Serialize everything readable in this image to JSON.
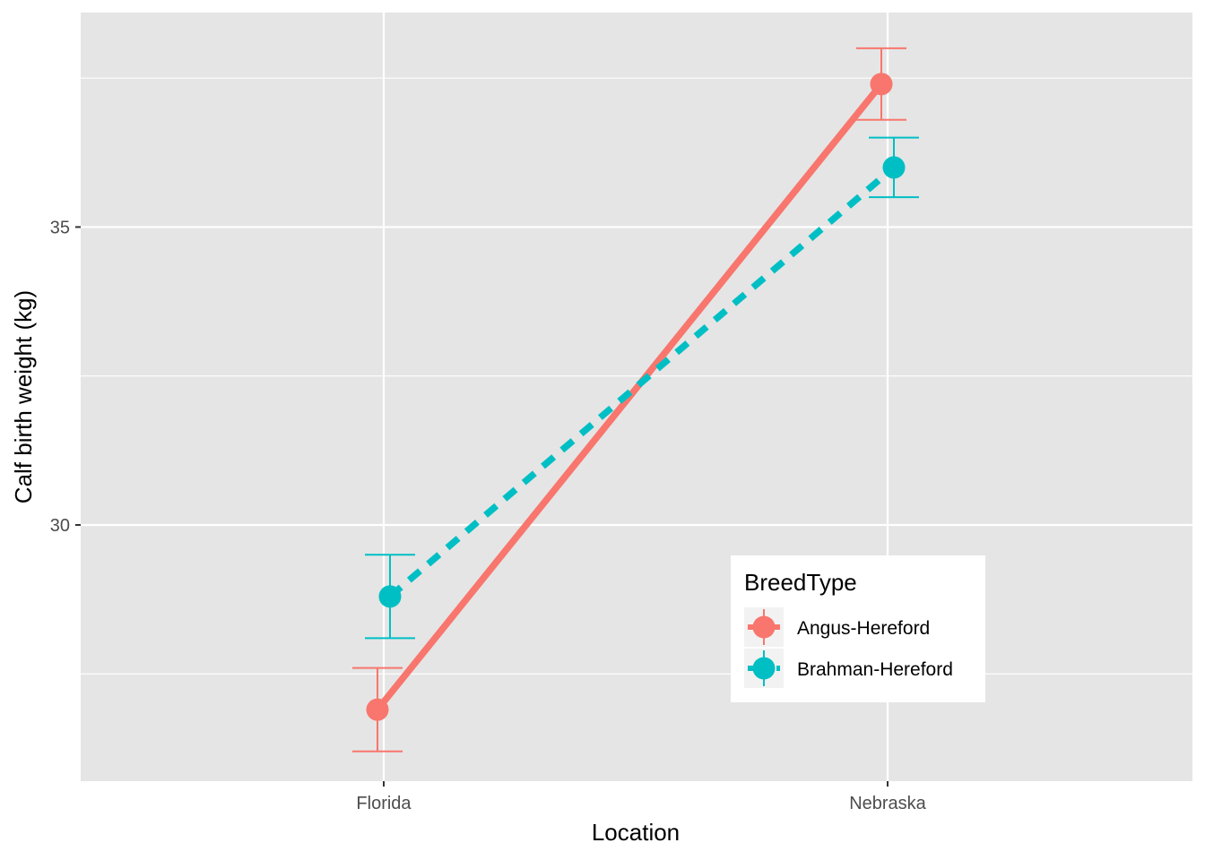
{
  "chart_data": {
    "type": "line",
    "categories": [
      "Florida",
      "Nebraska"
    ],
    "xlabel": "Location",
    "ylabel": "Calf birth weight (kg)",
    "yticks": [
      30,
      35
    ],
    "ylim": [
      25.7,
      38.6
    ],
    "grid": true,
    "legend": {
      "title": "BreedType",
      "position": "bottom-right inside"
    },
    "series": [
      {
        "name": "Angus-Hereford",
        "color": "#F8766D",
        "line_style": "solid",
        "values": [
          26.9,
          37.4
        ],
        "error_low": [
          26.2,
          36.8
        ],
        "error_high": [
          27.6,
          38.0
        ]
      },
      {
        "name": "Brahman-Hereford",
        "color": "#00BFC4",
        "line_style": "dashed",
        "values": [
          28.8,
          36.0
        ],
        "error_low": [
          28.1,
          35.5
        ],
        "error_high": [
          29.5,
          36.5
        ]
      }
    ]
  }
}
